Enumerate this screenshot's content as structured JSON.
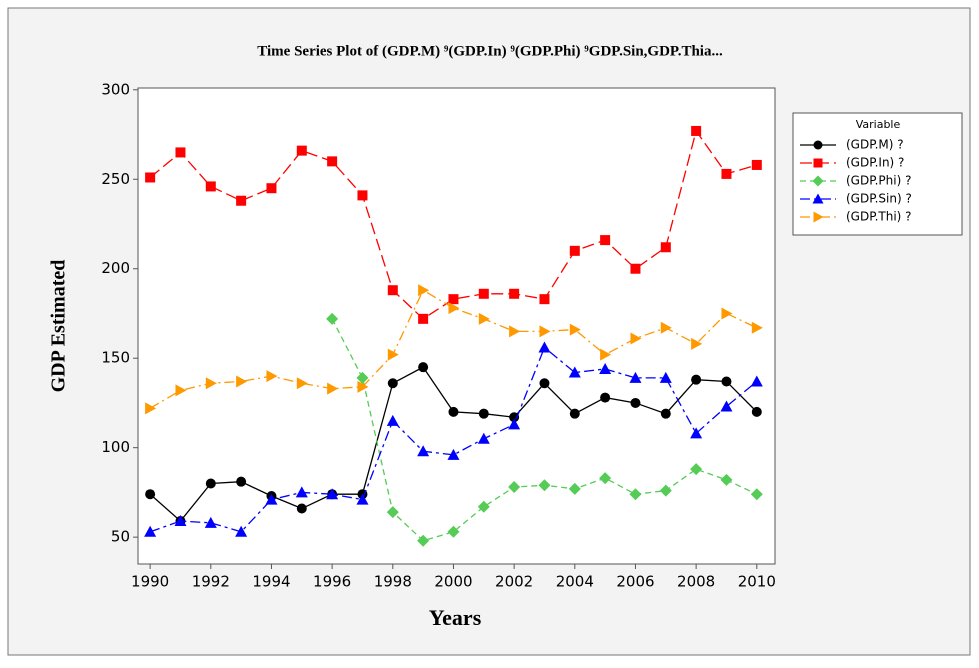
{
  "chart_data": {
    "type": "line",
    "title": "Time Series Plot of (GDP.M) ⁹(GDP.In) ⁹(GDP.Phi) ⁹GDP.Sin,GDP.Thia...",
    "x_label": "Years",
    "y_label": "GDP Estimated",
    "x": [
      1990,
      1991,
      1992,
      1993,
      1994,
      1995,
      1996,
      1997,
      1998,
      1999,
      2000,
      2001,
      2002,
      2003,
      2004,
      2005,
      2006,
      2007,
      2008,
      2009,
      2010
    ],
    "xlim": [
      1989.6,
      2010.6
    ],
    "xticks": [
      1990,
      1992,
      1994,
      1996,
      1998,
      2000,
      2002,
      2004,
      2006,
      2008,
      2010
    ],
    "ylim": [
      35,
      301
    ],
    "yticks": [
      50,
      100,
      150,
      200,
      250,
      300
    ],
    "legend_title": "Variable",
    "legend_position": "right",
    "series": [
      {
        "name": "(GDP.M) ?",
        "color": "#000000",
        "marker": "circle",
        "dash": "none",
        "values": [
          74,
          59,
          80,
          81,
          73,
          66,
          74,
          74,
          136,
          145,
          120,
          119,
          117,
          136,
          119,
          128,
          125,
          119,
          138,
          137,
          120
        ]
      },
      {
        "name": "(GDP.In) ?",
        "color": "#ff0000",
        "marker": "square",
        "dash": "12 5",
        "values": [
          251,
          265,
          246,
          238,
          245,
          266,
          260,
          241,
          188,
          172,
          183,
          186,
          186,
          183,
          210,
          216,
          200,
          212,
          277,
          253,
          258
        ]
      },
      {
        "name": "(GDP.Phi) ?",
        "color": "#55cc55",
        "marker": "diamond",
        "dash": "6 4",
        "values": [
          null,
          null,
          null,
          null,
          null,
          null,
          172,
          139,
          64,
          48,
          53,
          67,
          78,
          79,
          77,
          83,
          74,
          76,
          88,
          82,
          74
        ]
      },
      {
        "name": "(GDP.Sin) ?",
        "color": "#0000ff",
        "marker": "triangle",
        "dash": "10 4 3 4",
        "values": [
          53,
          59,
          58,
          53,
          71,
          75,
          74,
          71,
          115,
          98,
          96,
          105,
          113,
          156,
          142,
          144,
          139,
          139,
          108,
          123,
          137
        ]
      },
      {
        "name": "(GDP.Thi) ?",
        "color": "#ff9900",
        "marker": "right-triangle",
        "dash": "10 4 2 4",
        "values": [
          122,
          132,
          136,
          137,
          140,
          136,
          133,
          134,
          152,
          188,
          178,
          172,
          165,
          165,
          166,
          152,
          161,
          167,
          158,
          175,
          167
        ]
      }
    ]
  }
}
